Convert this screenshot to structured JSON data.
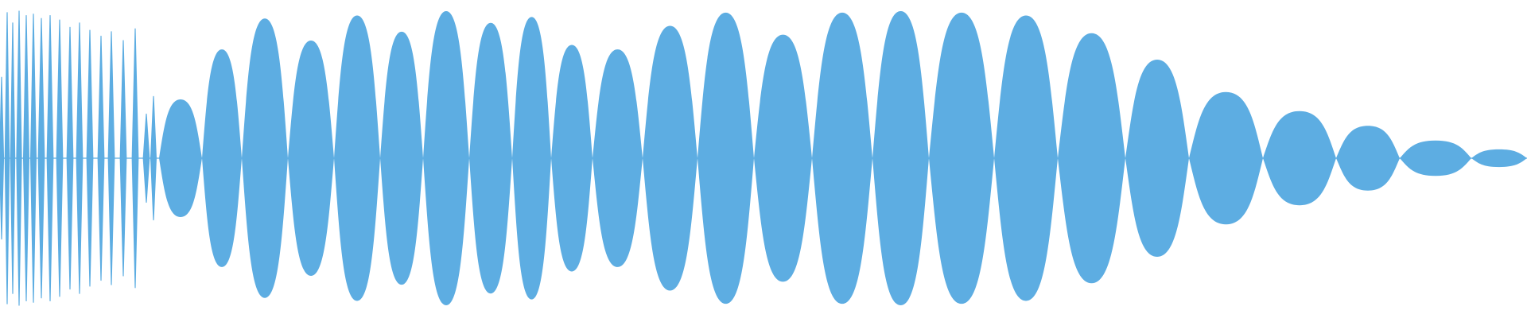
{
  "waveform": {
    "color": "#5DADE2",
    "background": "#FFFFFF",
    "lobes": [
      {
        "a": 0.4
      },
      {
        "a": 0.74
      },
      {
        "a": 0.95
      },
      {
        "a": 0.8
      },
      {
        "a": 0.97
      },
      {
        "a": 0.86
      },
      {
        "a": 1.0
      },
      {
        "a": 0.92
      },
      {
        "a": 0.96
      },
      {
        "a": 0.77
      },
      {
        "a": 0.74
      },
      {
        "a": 0.9
      },
      {
        "a": 0.99
      },
      {
        "a": 0.84
      },
      {
        "a": 0.99
      },
      {
        "a": 1.0
      },
      {
        "a": 0.99
      },
      {
        "a": 0.97
      },
      {
        "a": 0.85
      },
      {
        "a": 0.67
      },
      {
        "a": 0.45
      },
      {
        "a": 0.32
      },
      {
        "a": 0.22
      },
      {
        "a": 0.12
      },
      {
        "a": 0.06
      },
      {
        "a": 0.02
      },
      {
        "a": 0.01
      }
    ]
  }
}
